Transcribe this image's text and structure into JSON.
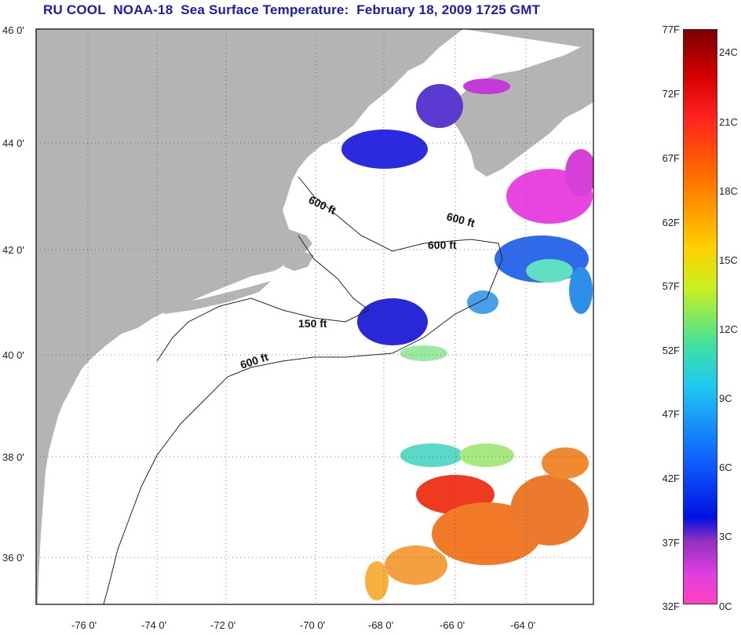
{
  "title": "RU COOL  NOAA-18  Sea Surface Temperature:  February 18, 2009 1725 GMT",
  "lat_labels": [
    "46 0'",
    "44 0'",
    "42 0'",
    "40 0'",
    "38 0'",
    "36 0'"
  ],
  "lon_labels": [
    "-76 0'",
    "-74 0'",
    "-72 0'",
    "-70 0'",
    "-68 0'",
    "-66 0'",
    "-64 0'"
  ],
  "contours": [
    "600 ft",
    "600 ft",
    "600 ft",
    "150 ft",
    "600 ft"
  ],
  "colorbar": {
    "fahrenheit": [
      "77F",
      "72F",
      "67F",
      "62F",
      "57F",
      "52F",
      "47F",
      "42F",
      "37F",
      "32F"
    ],
    "celsius": [
      "24C",
      "21C",
      "18C",
      "15C",
      "12C",
      "9C",
      "6C",
      "3C",
      "0C"
    ]
  },
  "colors": {
    "land": "#b4b4b4",
    "title": "#1a1ab0"
  }
}
